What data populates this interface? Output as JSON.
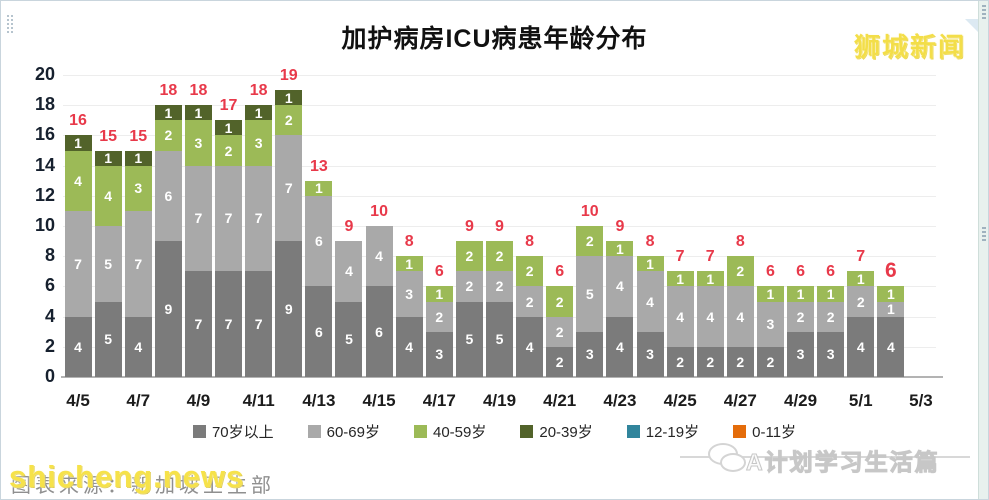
{
  "frame": {
    "brand": "狮城新闻"
  },
  "watermarks": {
    "left_gray": "图表来源：新加坡卫生部",
    "left_yellow": "shicheng.news",
    "right": "A计划学习生活篇"
  },
  "chart_data": {
    "type": "bar",
    "stacked": true,
    "title": "加护病房ICU病患年龄分布",
    "categories": [
      "4/5",
      "4/6",
      "4/7",
      "4/8",
      "4/9",
      "4/10",
      "4/11",
      "4/12",
      "4/13",
      "4/14",
      "4/15",
      "4/16",
      "4/17",
      "4/18",
      "4/19",
      "4/20",
      "4/21",
      "4/22",
      "4/23",
      "4/24",
      "4/25",
      "4/26",
      "4/27",
      "4/28",
      "4/29",
      "4/30",
      "5/1",
      "5/2"
    ],
    "x_axis_tick_labels": [
      "4/5",
      "4/7",
      "4/9",
      "4/11",
      "4/13",
      "4/15",
      "4/17",
      "4/19",
      "4/21",
      "4/23",
      "4/25",
      "4/27",
      "4/29",
      "5/1",
      "5/3"
    ],
    "x_slots": 29,
    "yticks": [
      0,
      2,
      4,
      6,
      8,
      10,
      12,
      14,
      16,
      18,
      20
    ],
    "ylim": [
      0,
      20
    ],
    "grid": true,
    "legend_position": "bottom",
    "total_label_color": "#e8394a",
    "series": [
      {
        "name": "70岁以上",
        "color": "#7b7b7b",
        "values": [
          4,
          5,
          4,
          9,
          7,
          7,
          7,
          9,
          6,
          5,
          6,
          4,
          3,
          5,
          5,
          4,
          2,
          3,
          4,
          3,
          2,
          2,
          2,
          2,
          3,
          3,
          4,
          4
        ]
      },
      {
        "name": "60-69岁",
        "color": "#a9a9a9",
        "values": [
          7,
          5,
          7,
          6,
          7,
          7,
          7,
          7,
          6,
          4,
          4,
          3,
          2,
          2,
          2,
          2,
          2,
          5,
          4,
          4,
          4,
          4,
          4,
          3,
          2,
          2,
          2,
          1
        ]
      },
      {
        "name": "40-59岁",
        "color": "#9cba57",
        "values": [
          4,
          4,
          3,
          2,
          3,
          2,
          3,
          2,
          1,
          0,
          0,
          1,
          1,
          2,
          2,
          2,
          2,
          2,
          1,
          1,
          1,
          1,
          2,
          1,
          1,
          1,
          1,
          1
        ]
      },
      {
        "name": "20-39岁",
        "color": "#52632a",
        "values": [
          1,
          1,
          1,
          1,
          1,
          1,
          1,
          1,
          0,
          0,
          0,
          0,
          0,
          0,
          0,
          0,
          0,
          0,
          0,
          0,
          0,
          0,
          0,
          0,
          0,
          0,
          0,
          0
        ]
      },
      {
        "name": "12-19岁",
        "color": "#31859c",
        "values": [
          0,
          0,
          0,
          0,
          0,
          0,
          0,
          0,
          0,
          0,
          0,
          0,
          0,
          0,
          0,
          0,
          0,
          0,
          0,
          0,
          0,
          0,
          0,
          0,
          0,
          0,
          0,
          0
        ]
      },
      {
        "name": "0-11岁",
        "color": "#e46c0a",
        "values": [
          0,
          0,
          0,
          0,
          0,
          0,
          0,
          0,
          0,
          0,
          0,
          0,
          0,
          0,
          0,
          0,
          0,
          0,
          0,
          0,
          0,
          0,
          0,
          0,
          0,
          0,
          0,
          0
        ]
      }
    ],
    "totals": [
      16,
      15,
      15,
      18,
      18,
      17,
      18,
      19,
      13,
      9,
      10,
      8,
      6,
      9,
      9,
      8,
      6,
      10,
      9,
      8,
      7,
      7,
      8,
      6,
      6,
      6,
      7,
      6
    ]
  }
}
